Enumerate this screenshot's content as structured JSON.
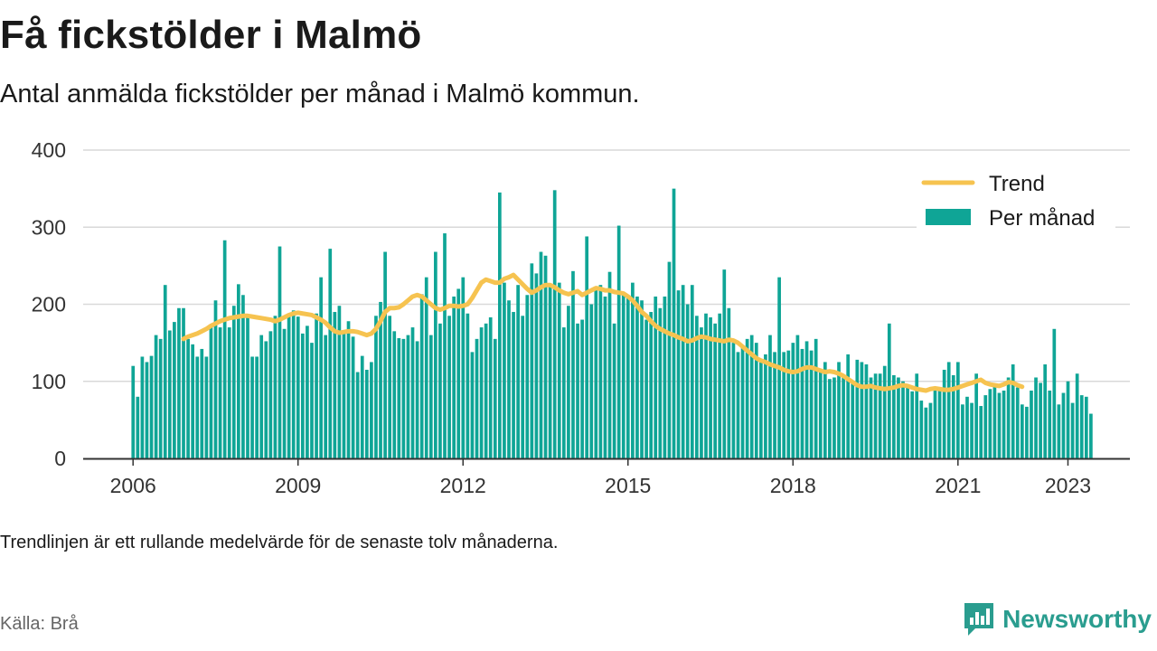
{
  "header": {
    "title": "Få fickstölder i Malmö",
    "subtitle": "Antal anmälda fickstölder per månad i Malmö kommun."
  },
  "footer": {
    "note": "Trendlinjen är ett rullande medelvärde för de senaste tolv månaderna.",
    "source": "Källa: Brå",
    "brand": "Newsworthy"
  },
  "colors": {
    "bars": "#0fa596",
    "trend": "#f6c350",
    "brand": "#2a9d8f"
  },
  "icons": {
    "brand_logo": "bar-chart-speech-bubble-icon"
  },
  "chart_data": {
    "type": "bar",
    "title": "Få fickstölder i Malmö",
    "xlabel": "",
    "ylabel": "",
    "start": "2006-01",
    "frequency": "monthly",
    "ylim": [
      0,
      400
    ],
    "yticks": [
      0,
      100,
      200,
      300,
      400
    ],
    "xticks": [
      "2006",
      "2009",
      "2012",
      "2015",
      "2018",
      "2021",
      "2023"
    ],
    "grid": true,
    "legend": {
      "position": "top-right",
      "items": [
        "Trend",
        "Per månad"
      ]
    },
    "series": [
      {
        "name": "Per månad",
        "type": "bar",
        "values": [
          120,
          80,
          132,
          125,
          133,
          160,
          155,
          225,
          166,
          177,
          195,
          195,
          155,
          148,
          132,
          142,
          132,
          170,
          205,
          170,
          283,
          170,
          198,
          226,
          212,
          185,
          132,
          132,
          160,
          152,
          165,
          185,
          275,
          168,
          188,
          192,
          184,
          162,
          172,
          150,
          188,
          235,
          160,
          272,
          190,
          198,
          165,
          178,
          158,
          112,
          133,
          115,
          125,
          185,
          203,
          268,
          185,
          165,
          156,
          155,
          160,
          170,
          152,
          213,
          235,
          160,
          268,
          175,
          292,
          185,
          210,
          220,
          235,
          188,
          138,
          155,
          170,
          175,
          183,
          155,
          345,
          228,
          205,
          190,
          225,
          185,
          212,
          253,
          240,
          268,
          263,
          225,
          348,
          228,
          170,
          198,
          243,
          175,
          180,
          288,
          200,
          220,
          225,
          210,
          242,
          175,
          302,
          215,
          208,
          228,
          210,
          205,
          180,
          190,
          210,
          195,
          210,
          255,
          350,
          218,
          225,
          200,
          225,
          185,
          170,
          188,
          183,
          175,
          188,
          245,
          195,
          150,
          138,
          145,
          155,
          160,
          150,
          128,
          135,
          160,
          138,
          235,
          138,
          140,
          150,
          160,
          142,
          152,
          140,
          155,
          115,
          125,
          103,
          105,
          125,
          108,
          135,
          98,
          128,
          125,
          122,
          105,
          110,
          110,
          120,
          175,
          108,
          105,
          100,
          95,
          87,
          110,
          75,
          66,
          72,
          88,
          90,
          115,
          125,
          108,
          125,
          70,
          80,
          72,
          110,
          68,
          82,
          90,
          95,
          85,
          88,
          105,
          122,
          92,
          70,
          67,
          88,
          105,
          98,
          122,
          88,
          168,
          70,
          85,
          100,
          72,
          110,
          82,
          80,
          58
        ]
      },
      {
        "name": "Trend",
        "type": "line",
        "values": [
          155,
          158,
          160,
          162,
          165,
          168,
          172,
          175,
          178,
          180,
          182,
          183,
          184,
          185,
          185,
          184,
          183,
          182,
          181,
          180,
          178,
          180,
          183,
          186,
          188,
          189,
          188,
          187,
          186,
          183,
          180,
          176,
          170,
          165,
          163,
          164,
          165,
          165,
          164,
          162,
          160,
          162,
          168,
          178,
          190,
          195,
          195,
          196,
          200,
          205,
          210,
          212,
          210,
          205,
          200,
          195,
          193,
          195,
          198,
          198,
          197,
          198,
          200,
          208,
          218,
          228,
          232,
          230,
          228,
          228,
          233,
          235,
          238,
          232,
          226,
          220,
          215,
          218,
          222,
          225,
          225,
          222,
          218,
          215,
          213,
          215,
          217,
          212,
          215,
          218,
          221,
          220,
          218,
          218,
          216,
          215,
          214,
          210,
          205,
          198,
          190,
          185,
          178,
          172,
          168,
          165,
          162,
          160,
          157,
          155,
          152,
          153,
          156,
          158,
          157,
          155,
          154,
          153,
          152,
          154,
          153,
          150,
          145,
          140,
          135,
          130,
          127,
          125,
          122,
          120,
          118,
          115,
          113,
          112,
          113,
          116,
          118,
          118,
          116,
          114,
          112,
          113,
          112,
          110,
          107,
          103,
          99,
          95,
          93,
          93,
          94,
          92,
          91,
          90,
          91,
          92,
          94,
          95,
          94,
          92,
          90,
          89,
          88,
          90,
          91,
          90,
          89,
          89,
          90,
          92,
          94,
          96,
          98,
          100,
          102,
          98,
          96,
          95,
          94,
          96,
          99,
          98,
          95,
          93
        ]
      }
    ]
  }
}
